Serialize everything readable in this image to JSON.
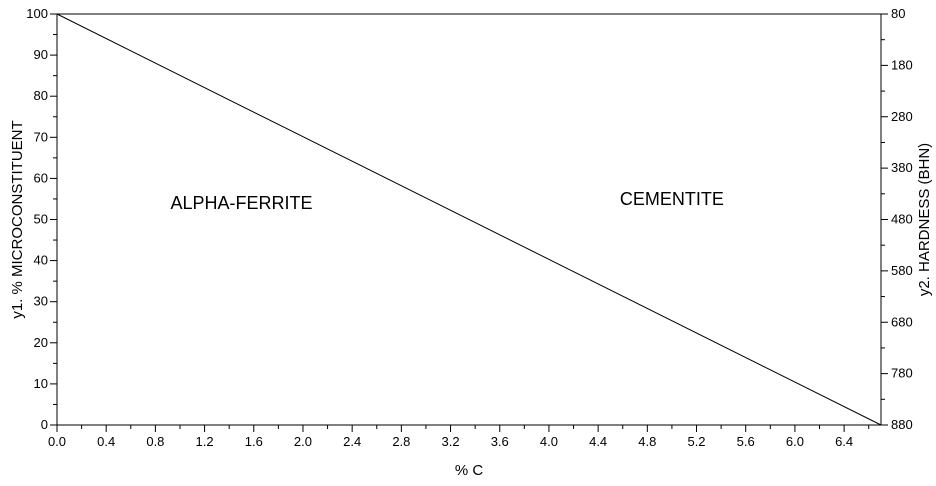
{
  "chart_data": {
    "type": "line",
    "title": "",
    "xlabel": "% C",
    "ylabel": "y1. % MICROCONSTITUENT",
    "y2label": "y2. HARDNESS (BHN)",
    "xlim": [
      0.0,
      6.7
    ],
    "ylim": [
      0,
      100
    ],
    "y2lim": [
      80,
      880
    ],
    "y2_inverted": true,
    "grid": false,
    "x_ticks": [
      0.0,
      0.4,
      0.8,
      1.2,
      1.6,
      2.0,
      2.4,
      2.8,
      3.2,
      3.6,
      4.0,
      4.4,
      4.8,
      5.2,
      5.6,
      6.0,
      6.4
    ],
    "x_tick_labels": [
      "0.0",
      "0.4",
      "0.8",
      "1.2",
      "1.6",
      "2.0",
      "2.4",
      "2.8",
      "3.2",
      "3.6",
      "4.0",
      "4.4",
      "4.8",
      "5.2",
      "5.6",
      "6.0",
      "6.4"
    ],
    "y_ticks": [
      0,
      10,
      20,
      30,
      40,
      50,
      60,
      70,
      80,
      90,
      100
    ],
    "y_tick_labels": [
      "0",
      "10",
      "20",
      "30",
      "40",
      "50",
      "60",
      "70",
      "80",
      "90",
      "100"
    ],
    "y2_ticks": [
      80,
      180,
      280,
      380,
      480,
      580,
      680,
      780,
      880
    ],
    "y2_tick_labels": [
      "80",
      "180",
      "280",
      "380",
      "480",
      "580",
      "680",
      "780",
      "880"
    ],
    "series": [
      {
        "x": [
          0.0,
          6.7
        ],
        "y": [
          100,
          0
        ],
        "color": "#000000"
      }
    ],
    "annotations": [
      {
        "text": "ALPHA-FERRITE",
        "x": 1.5,
        "y": 54
      },
      {
        "text": "CEMENTITE",
        "x": 5.0,
        "y": 55
      }
    ]
  }
}
